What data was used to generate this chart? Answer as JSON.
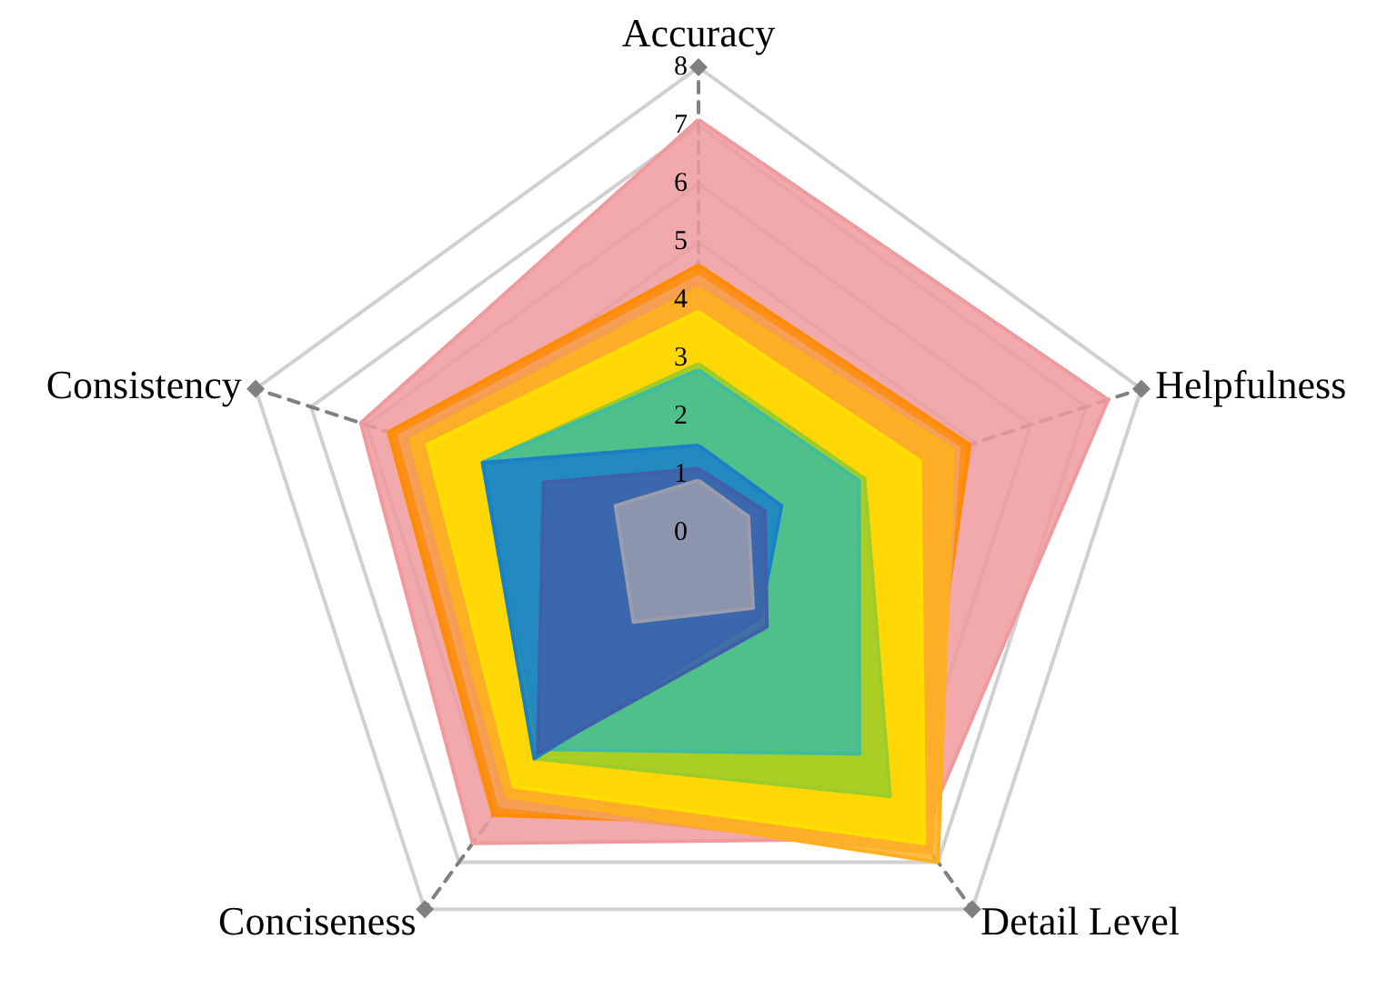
{
  "chart_data": {
    "type": "radar",
    "categories": [
      "Accuracy",
      "Helpfulness",
      "Detail Level",
      "Conciseness",
      "Consistency"
    ],
    "ylim": [
      0,
      8
    ],
    "yticks": [
      0,
      1,
      2,
      3,
      4,
      5,
      6,
      7,
      8
    ],
    "grid": true,
    "marker": "none",
    "series": [
      {
        "color": "#ef9a9d",
        "values": [
          7.1,
          7.4,
          6.5,
          6.6,
          6.1
        ]
      },
      {
        "color": "#ff8c00",
        "values": [
          4.6,
          4.9,
          6.3,
          6.0,
          5.6
        ]
      },
      {
        "color": "#f5a05a",
        "values": [
          4.4,
          4.7,
          6.8,
          5.8,
          5.4
        ]
      },
      {
        "color": "#ffb020",
        "values": [
          4.2,
          4.6,
          7.0,
          5.6,
          5.2
        ]
      },
      {
        "color": "#ffde00",
        "values": [
          3.8,
          4.0,
          6.6,
          5.4,
          4.9
        ]
      },
      {
        "color": "#9ccc2a",
        "values": [
          2.9,
          3.0,
          5.6,
          4.8,
          3.9
        ]
      },
      {
        "color": "#3fbd9c",
        "values": [
          2.8,
          2.9,
          4.7,
          4.6,
          3.9
        ]
      },
      {
        "color": "#1a80c8",
        "values": [
          1.5,
          1.5,
          1.8,
          4.8,
          3.9
        ]
      },
      {
        "color": "#4060a8",
        "values": [
          1.1,
          1.2,
          2.0,
          4.7,
          2.8
        ]
      },
      {
        "color": "#9a9dae",
        "values": [
          0.9,
          0.9,
          1.6,
          1.9,
          1.5
        ]
      }
    ]
  }
}
